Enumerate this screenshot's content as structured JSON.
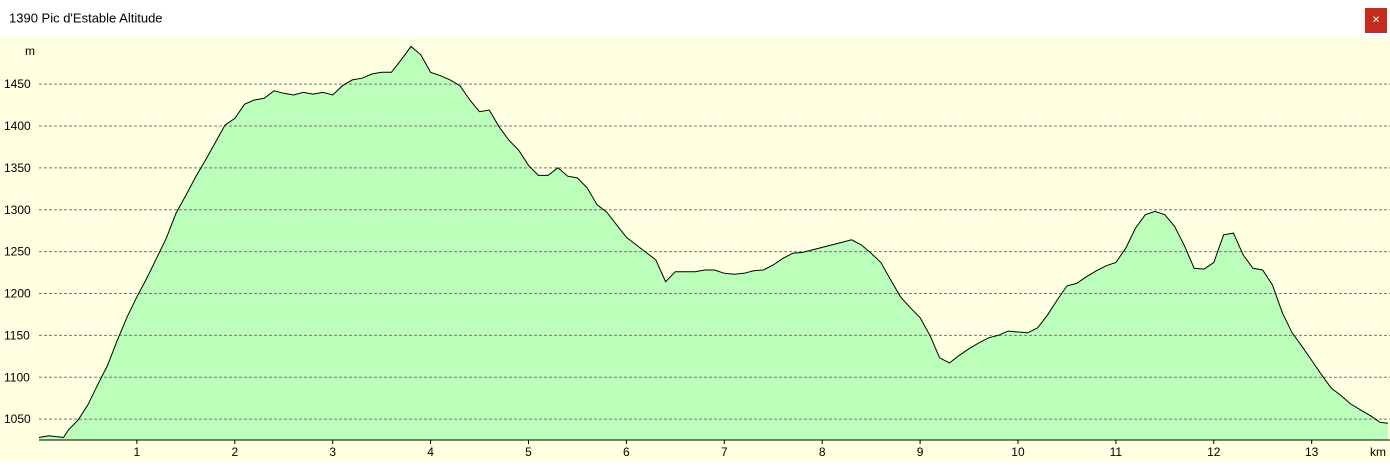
{
  "window": {
    "close": "×"
  },
  "chart_data": {
    "type": "area",
    "title": "1390 Pic d'Estable Altitude",
    "y_label": "m",
    "x_label": "km",
    "fill": "#bbffbb",
    "line_color": "#000000",
    "background": "#ffffe1",
    "grid": true,
    "xlim": [
      0,
      13.8
    ],
    "ylim": [
      1025,
      1505
    ],
    "xticks": [
      1,
      2,
      3,
      4,
      5,
      6,
      7,
      8,
      9,
      10,
      11,
      12,
      13
    ],
    "yticks": [
      1050,
      1100,
      1150,
      1200,
      1250,
      1300,
      1350,
      1400,
      1450
    ],
    "x": [
      0,
      0.1,
      0.25,
      0.3,
      0.4,
      0.5,
      0.6,
      0.7,
      0.8,
      0.9,
      1.0,
      1.1,
      1.2,
      1.3,
      1.4,
      1.5,
      1.6,
      1.7,
      1.8,
      1.9,
      2.0,
      2.1,
      2.2,
      2.3,
      2.4,
      2.5,
      2.6,
      2.7,
      2.8,
      2.9,
      3.0,
      3.1,
      3.2,
      3.3,
      3.4,
      3.5,
      3.6,
      3.7,
      3.8,
      3.9,
      4.0,
      4.1,
      4.2,
      4.3,
      4.4,
      4.5,
      4.6,
      4.7,
      4.8,
      4.9,
      5.0,
      5.1,
      5.2,
      5.3,
      5.4,
      5.5,
      5.6,
      5.7,
      5.8,
      5.9,
      6.0,
      6.1,
      6.2,
      6.3,
      6.4,
      6.5,
      6.6,
      6.7,
      6.8,
      6.9,
      7.0,
      7.1,
      7.2,
      7.3,
      7.4,
      7.5,
      7.6,
      7.7,
      7.8,
      7.9,
      8.0,
      8.1,
      8.2,
      8.3,
      8.4,
      8.5,
      8.6,
      8.7,
      8.8,
      8.9,
      9.0,
      9.1,
      9.2,
      9.3,
      9.4,
      9.5,
      9.6,
      9.7,
      9.8,
      9.9,
      10.0,
      10.1,
      10.2,
      10.3,
      10.4,
      10.5,
      10.6,
      10.7,
      10.8,
      10.9,
      11.0,
      11.1,
      11.2,
      11.3,
      11.4,
      11.5,
      11.6,
      11.7,
      11.8,
      11.9,
      12.0,
      12.1,
      12.2,
      12.3,
      12.4,
      12.5,
      12.6,
      12.7,
      12.8,
      12.9,
      13.0,
      13.1,
      13.2,
      13.3,
      13.4,
      13.5,
      13.6,
      13.7,
      13.78
    ],
    "y": [
      1028,
      1030,
      1028,
      1037,
      1049,
      1067,
      1091,
      1114,
      1144,
      1172,
      1196,
      1218,
      1242,
      1266,
      1296,
      1317,
      1339,
      1359,
      1380,
      1401,
      1409,
      1426,
      1431,
      1433,
      1442,
      1439,
      1437,
      1440,
      1438,
      1440,
      1437,
      1448,
      1455,
      1457,
      1462,
      1464,
      1464,
      1479,
      1495,
      1485,
      1464,
      1460,
      1455,
      1448,
      1431,
      1417,
      1419,
      1399,
      1383,
      1371,
      1353,
      1341,
      1341,
      1350,
      1340,
      1338,
      1326,
      1306,
      1297,
      1282,
      1267,
      1258,
      1249,
      1240,
      1214,
      1226,
      1226,
      1226,
      1228,
      1228,
      1224,
      1223,
      1224,
      1227,
      1228,
      1234,
      1242,
      1248,
      1249,
      1252,
      1255,
      1258,
      1261,
      1264,
      1258,
      1248,
      1237,
      1216,
      1196,
      1183,
      1171,
      1150,
      1123,
      1117,
      1126,
      1134,
      1141,
      1147,
      1150,
      1155,
      1154,
      1153,
      1159,
      1174,
      1192,
      1209,
      1212,
      1220,
      1227,
      1233,
      1237,
      1254,
      1278,
      1294,
      1298,
      1294,
      1280,
      1257,
      1230,
      1229,
      1237,
      1270,
      1272,
      1246,
      1230,
      1228,
      1210,
      1177,
      1153,
      1137,
      1120,
      1103,
      1087,
      1078,
      1068,
      1061,
      1054,
      1046,
      1045
    ]
  }
}
